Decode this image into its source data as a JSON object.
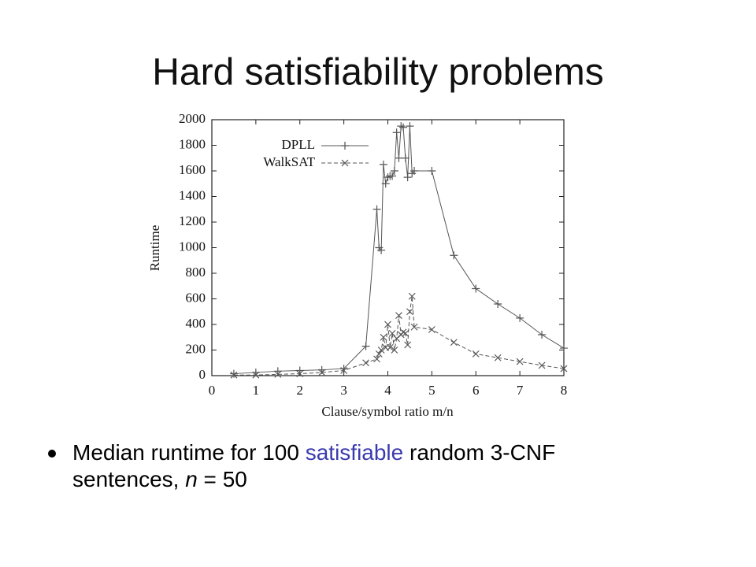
{
  "slide": {
    "title": "Hard satisfiability problems",
    "bullet": [
      "Median runtime for 100 ",
      "satisfiable",
      " random 3-CNF sentences, ",
      "n",
      " = 50"
    ]
  },
  "chart_data": {
    "type": "line",
    "xlabel": "Clause/symbol ratio m/n",
    "ylabel": "Runtime",
    "xlim": [
      0,
      8
    ],
    "xticks": [
      0,
      1,
      2,
      3,
      4,
      5,
      6,
      7,
      8
    ],
    "ylim": [
      0,
      2000
    ],
    "yticks": [
      0,
      200,
      400,
      600,
      800,
      1000,
      1200,
      1400,
      1600,
      1800,
      2000
    ],
    "legend": "top-left",
    "series": [
      {
        "name": "DPLL",
        "color": "#555555",
        "dash": "solid",
        "marker": "plus",
        "x": [
          0.5,
          1,
          1.5,
          2,
          2.5,
          3,
          3.5,
          3.75,
          3.8,
          3.85,
          3.9,
          3.95,
          4.0,
          4.05,
          4.1,
          4.15,
          4.2,
          4.25,
          4.3,
          4.35,
          4.4,
          4.45,
          4.5,
          4.55,
          4.6,
          5,
          5.5,
          6,
          6.5,
          7,
          7.5,
          8
        ],
        "values": [
          15,
          25,
          35,
          40,
          45,
          55,
          230,
          1300,
          1000,
          980,
          1650,
          1500,
          1550,
          1560,
          1560,
          1600,
          1900,
          1700,
          1950,
          1940,
          1700,
          1550,
          1950,
          1580,
          1600,
          1600,
          940,
          680,
          560,
          450,
          320,
          215
        ]
      },
      {
        "name": "WalkSAT",
        "color": "#555555",
        "dash": "dashed",
        "marker": "cross",
        "x": [
          0.5,
          1,
          1.5,
          2,
          2.5,
          3,
          3.5,
          3.75,
          3.8,
          3.85,
          3.9,
          3.95,
          4.0,
          4.05,
          4.1,
          4.15,
          4.2,
          4.25,
          4.3,
          4.35,
          4.4,
          4.45,
          4.5,
          4.55,
          4.6,
          5,
          5.5,
          6,
          6.5,
          7,
          7.5,
          8
        ],
        "values": [
          5,
          5,
          10,
          15,
          25,
          40,
          100,
          130,
          170,
          200,
          300,
          220,
          400,
          220,
          330,
          200,
          290,
          470,
          320,
          340,
          330,
          240,
          500,
          620,
          380,
          360,
          260,
          170,
          140,
          110,
          80,
          55
        ]
      }
    ]
  }
}
